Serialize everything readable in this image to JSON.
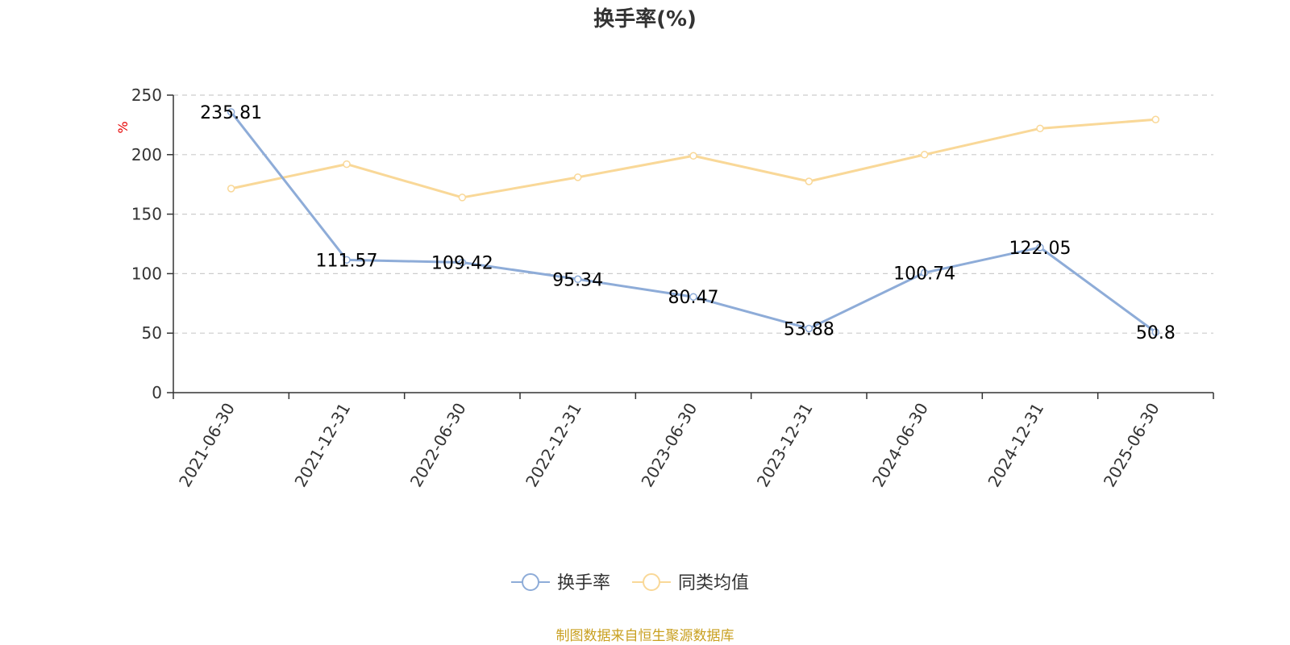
{
  "chart_data": {
    "type": "line",
    "title": "换手率(%)",
    "ylabel": "%",
    "ylim": [
      0,
      250
    ],
    "yticks": [
      "0",
      "50",
      "100",
      "150",
      "200",
      "250"
    ],
    "categories": [
      "2021-06-30",
      "2021-12-31",
      "2022-06-30",
      "2022-12-31",
      "2023-06-30",
      "2023-12-31",
      "2024-06-30",
      "2024-12-31",
      "2025-06-30"
    ],
    "series": [
      {
        "name": "换手率",
        "color": "#8eacd8",
        "values": [
          235.81,
          111.57,
          109.42,
          95.34,
          80.47,
          53.88,
          100.74,
          122.05,
          50.8
        ],
        "labels": [
          "235.81",
          "111.57",
          "109.42",
          "95.34",
          "80.47",
          "53.88",
          "100.74",
          "122.05",
          "50.8"
        ]
      },
      {
        "name": "同类均值",
        "color": "#f9d898",
        "values": [
          171.5,
          192,
          164,
          181,
          199,
          177.5,
          200,
          222,
          229.5
        ]
      }
    ],
    "grid": true,
    "legend_position": "bottom-center"
  },
  "source": "制图数据来自恒生聚源数据库",
  "colors": {
    "axis": "#333333",
    "grid": "#cccccc",
    "unit": "#e60000",
    "source": "#c9a020"
  }
}
